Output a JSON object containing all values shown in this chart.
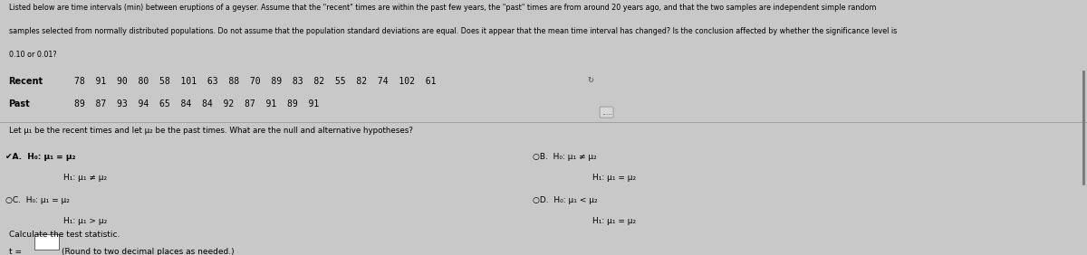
{
  "bg_color": "#c8c8c8",
  "panel_color": "#e8e8e8",
  "text_color": "#000000",
  "header_text_line1": "Listed below are time intervals (min) between eruptions of a geyser. Assume that the \"recent\" times are within the past few years, the \"past\" times are from around 20 years ago, and that the two samples are independent simple random",
  "header_text_line2": "samples selected from normally distributed populations. Do not assume that the population standard deviations are equal. Does it appear that the mean time interval has changed? Is the conclusion affected by whether the significance level is",
  "header_text_line3": "0.10 or 0.01?",
  "recent_label": "Recent",
  "recent_data": "78  91  90  80  58  101  63  88  70  89  83  82  55  82  74  102  61",
  "past_label": "Past",
  "past_data": "89  87  93  94  65  84  84  92  87  91  89  91",
  "hypothesis_text": "Let μ₁ be the recent times and let μ₂ be the past times. What are the null and alternative hypotheses?",
  "option_A_line1": "H₀: μ₁ = μ₂",
  "option_A_line2": "H₁: μ₁ ≠ μ₂",
  "option_B_line1": "H₀: μ₁ ≠ μ₂",
  "option_B_line2": "H₁: μ₁ = μ₂",
  "option_C_line1": "H₀: μ₁ = μ₂",
  "option_C_line2": "H₁: μ₁ > μ₂",
  "option_D_line1": "H₀: μ₁ < μ₂",
  "option_D_line2": "H₁: μ₁ = μ₂",
  "calc_text": "Calculate the test statistic.",
  "t_text": "t =",
  "round_text": "(Round to two decimal places as needed.)",
  "dots_text": ".....",
  "header_fontsize": 5.8,
  "body_fontsize": 6.5,
  "label_fontsize": 7.0,
  "data_fontsize": 7.0,
  "small_fontsize": 5.5
}
